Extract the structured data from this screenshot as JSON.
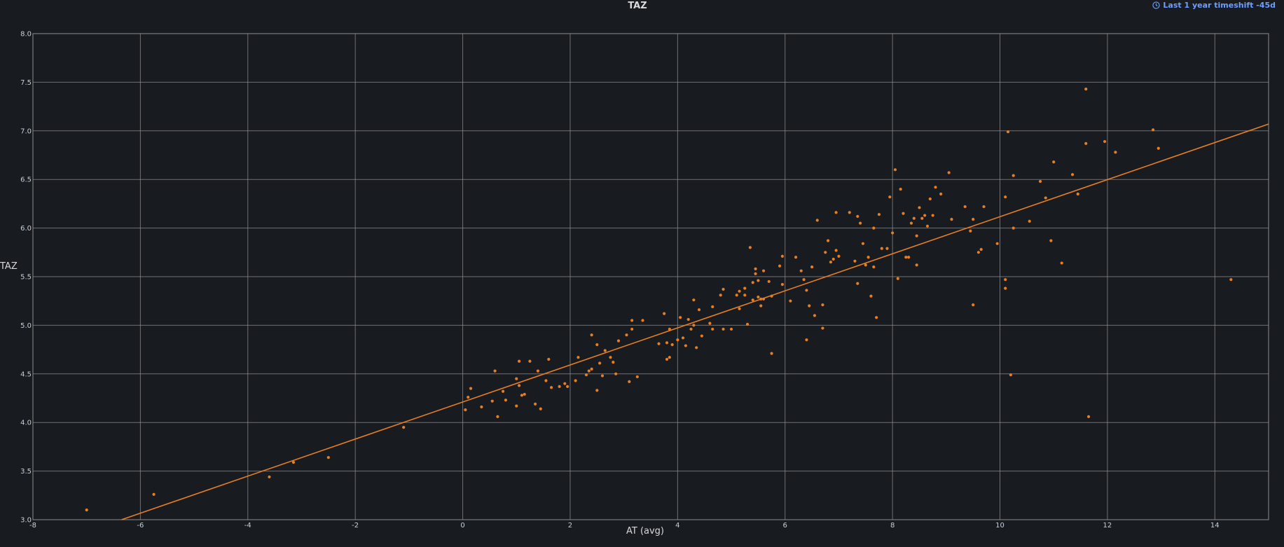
{
  "panel": {
    "title": "TAZ",
    "timeshift_label": "Last 1 year timeshift -45d",
    "timeshift_icon": "clock-icon"
  },
  "colors": {
    "background": "#181b1f",
    "grid": "#8e8e8e",
    "series": "#e57e24",
    "accent": "#6e9fff"
  },
  "chart_data": {
    "type": "scatter",
    "title": "TAZ",
    "xlabel": "AT (avg)",
    "ylabel": "TAZ",
    "xlim": [
      -8,
      15
    ],
    "ylim": [
      3.0,
      8.0
    ],
    "xticks": [
      -8,
      -6,
      -4,
      -2,
      0,
      2,
      4,
      6,
      8,
      10,
      12,
      14
    ],
    "yticks": [
      3.0,
      3.5,
      4.0,
      4.5,
      5.0,
      5.5,
      6.0,
      6.5,
      7.0,
      7.5,
      8.0
    ],
    "grid": true,
    "regression_line": {
      "x": [
        -6.35,
        15.0
      ],
      "y": [
        3.0,
        7.07
      ]
    },
    "points": [
      [
        -7.0,
        3.1
      ],
      [
        -5.75,
        3.26
      ],
      [
        -3.6,
        3.44
      ],
      [
        -3.15,
        3.59
      ],
      [
        -2.5,
        3.64
      ],
      [
        -1.1,
        3.95
      ],
      [
        0.05,
        4.13
      ],
      [
        0.1,
        4.26
      ],
      [
        0.15,
        4.35
      ],
      [
        0.35,
        4.16
      ],
      [
        0.55,
        4.22
      ],
      [
        0.6,
        4.53
      ],
      [
        0.65,
        4.06
      ],
      [
        0.75,
        4.32
      ],
      [
        0.8,
        4.23
      ],
      [
        1.0,
        4.17
      ],
      [
        1.0,
        4.45
      ],
      [
        1.05,
        4.63
      ],
      [
        1.05,
        4.38
      ],
      [
        1.1,
        4.28
      ],
      [
        1.15,
        4.29
      ],
      [
        1.25,
        4.63
      ],
      [
        1.35,
        4.19
      ],
      [
        1.4,
        4.53
      ],
      [
        1.45,
        4.14
      ],
      [
        1.55,
        4.43
      ],
      [
        1.6,
        4.65
      ],
      [
        1.65,
        4.36
      ],
      [
        1.8,
        4.37
      ],
      [
        1.9,
        4.4
      ],
      [
        1.95,
        4.37
      ],
      [
        2.1,
        4.43
      ],
      [
        2.15,
        4.67
      ],
      [
        2.3,
        4.49
      ],
      [
        2.35,
        4.53
      ],
      [
        2.4,
        4.9
      ],
      [
        2.4,
        4.55
      ],
      [
        2.5,
        4.33
      ],
      [
        2.5,
        4.8
      ],
      [
        2.55,
        4.61
      ],
      [
        2.6,
        4.48
      ],
      [
        2.65,
        4.74
      ],
      [
        2.75,
        4.67
      ],
      [
        2.8,
        4.62
      ],
      [
        2.85,
        4.5
      ],
      [
        2.9,
        4.84
      ],
      [
        3.05,
        4.9
      ],
      [
        3.1,
        4.42
      ],
      [
        3.15,
        5.05
      ],
      [
        3.15,
        4.96
      ],
      [
        3.25,
        4.47
      ],
      [
        3.35,
        5.05
      ],
      [
        3.65,
        4.81
      ],
      [
        3.75,
        5.12
      ],
      [
        3.8,
        4.65
      ],
      [
        3.8,
        4.82
      ],
      [
        3.85,
        4.96
      ],
      [
        3.85,
        4.67
      ],
      [
        3.9,
        4.8
      ],
      [
        4.0,
        4.85
      ],
      [
        4.05,
        5.08
      ],
      [
        4.1,
        4.87
      ],
      [
        4.15,
        4.79
      ],
      [
        4.2,
        5.06
      ],
      [
        4.25,
        4.96
      ],
      [
        4.3,
        5.26
      ],
      [
        4.3,
        5.0
      ],
      [
        4.35,
        4.77
      ],
      [
        4.4,
        5.16
      ],
      [
        4.45,
        4.89
      ],
      [
        4.6,
        5.02
      ],
      [
        4.65,
        5.19
      ],
      [
        4.65,
        4.96
      ],
      [
        4.8,
        5.31
      ],
      [
        4.85,
        4.96
      ],
      [
        4.85,
        5.37
      ],
      [
        5.0,
        4.96
      ],
      [
        5.1,
        5.31
      ],
      [
        5.15,
        5.35
      ],
      [
        5.15,
        5.17
      ],
      [
        5.25,
        5.31
      ],
      [
        5.25,
        5.38
      ],
      [
        5.3,
        5.01
      ],
      [
        5.35,
        5.8
      ],
      [
        5.4,
        5.44
      ],
      [
        5.4,
        5.26
      ],
      [
        5.45,
        5.53
      ],
      [
        5.45,
        5.58
      ],
      [
        5.5,
        5.46
      ],
      [
        5.5,
        5.29
      ],
      [
        5.55,
        5.2
      ],
      [
        5.55,
        5.27
      ],
      [
        5.6,
        5.56
      ],
      [
        5.6,
        5.27
      ],
      [
        5.7,
        5.45
      ],
      [
        5.75,
        4.71
      ],
      [
        5.75,
        5.3
      ],
      [
        5.9,
        5.61
      ],
      [
        5.95,
        5.42
      ],
      [
        5.95,
        5.71
      ],
      [
        6.1,
        5.25
      ],
      [
        6.2,
        5.7
      ],
      [
        6.3,
        5.56
      ],
      [
        6.35,
        5.47
      ],
      [
        6.4,
        5.36
      ],
      [
        6.4,
        4.85
      ],
      [
        6.45,
        5.2
      ],
      [
        6.5,
        5.6
      ],
      [
        6.55,
        5.1
      ],
      [
        6.6,
        6.08
      ],
      [
        6.7,
        5.21
      ],
      [
        6.7,
        4.97
      ],
      [
        6.75,
        5.75
      ],
      [
        6.8,
        5.87
      ],
      [
        6.85,
        5.65
      ],
      [
        6.9,
        5.68
      ],
      [
        6.95,
        6.16
      ],
      [
        6.95,
        5.77
      ],
      [
        7.0,
        5.71
      ],
      [
        7.2,
        6.16
      ],
      [
        7.3,
        5.66
      ],
      [
        7.35,
        5.43
      ],
      [
        7.35,
        6.12
      ],
      [
        7.4,
        6.05
      ],
      [
        7.45,
        5.84
      ],
      [
        7.5,
        5.62
      ],
      [
        7.55,
        5.7
      ],
      [
        7.6,
        5.3
      ],
      [
        7.65,
        5.6
      ],
      [
        7.65,
        6.0
      ],
      [
        7.7,
        5.08
      ],
      [
        7.75,
        6.14
      ],
      [
        7.8,
        5.79
      ],
      [
        7.9,
        5.79
      ],
      [
        7.95,
        6.32
      ],
      [
        8.0,
        5.95
      ],
      [
        8.05,
        6.6
      ],
      [
        8.1,
        5.48
      ],
      [
        8.15,
        6.4
      ],
      [
        8.2,
        6.15
      ],
      [
        8.25,
        5.7
      ],
      [
        8.3,
        5.7
      ],
      [
        8.35,
        6.05
      ],
      [
        8.4,
        6.1
      ],
      [
        8.45,
        5.92
      ],
      [
        8.45,
        5.62
      ],
      [
        8.5,
        6.21
      ],
      [
        8.55,
        6.1
      ],
      [
        8.6,
        6.13
      ],
      [
        8.65,
        6.02
      ],
      [
        8.7,
        6.3
      ],
      [
        8.75,
        6.13
      ],
      [
        8.8,
        6.42
      ],
      [
        8.9,
        6.35
      ],
      [
        9.05,
        6.57
      ],
      [
        9.1,
        6.09
      ],
      [
        9.35,
        6.22
      ],
      [
        9.45,
        5.97
      ],
      [
        9.5,
        6.09
      ],
      [
        9.5,
        5.21
      ],
      [
        9.6,
        5.75
      ],
      [
        9.65,
        5.78
      ],
      [
        9.7,
        6.22
      ],
      [
        9.95,
        5.84
      ],
      [
        10.1,
        5.47
      ],
      [
        10.1,
        5.38
      ],
      [
        10.1,
        6.32
      ],
      [
        10.15,
        6.99
      ],
      [
        10.2,
        4.49
      ],
      [
        10.25,
        6.0
      ],
      [
        10.25,
        6.54
      ],
      [
        10.55,
        6.07
      ],
      [
        10.75,
        6.48
      ],
      [
        10.85,
        6.31
      ],
      [
        10.95,
        5.87
      ],
      [
        11.0,
        6.68
      ],
      [
        11.15,
        5.64
      ],
      [
        11.35,
        6.55
      ],
      [
        11.45,
        6.35
      ],
      [
        11.6,
        7.43
      ],
      [
        11.6,
        6.87
      ],
      [
        11.65,
        4.06
      ],
      [
        11.95,
        6.89
      ],
      [
        12.15,
        6.78
      ],
      [
        12.85,
        7.01
      ],
      [
        12.95,
        6.82
      ],
      [
        14.3,
        5.47
      ]
    ]
  }
}
